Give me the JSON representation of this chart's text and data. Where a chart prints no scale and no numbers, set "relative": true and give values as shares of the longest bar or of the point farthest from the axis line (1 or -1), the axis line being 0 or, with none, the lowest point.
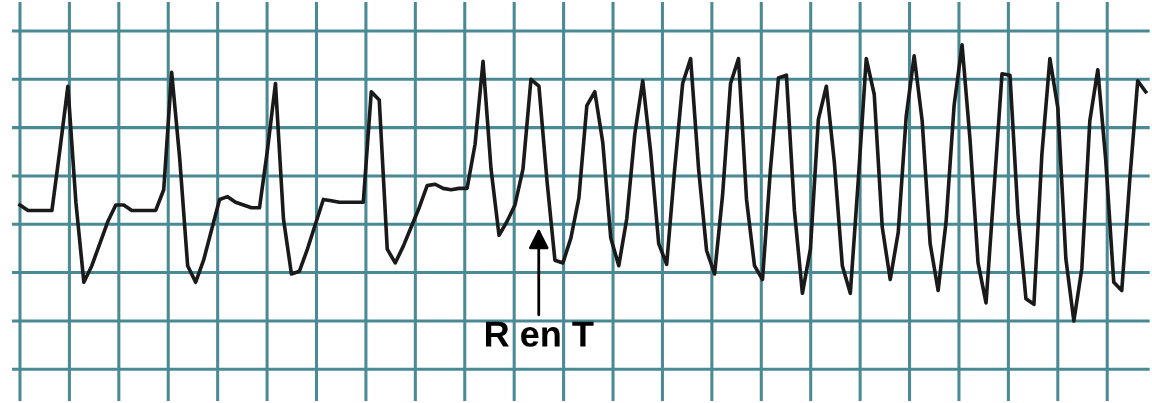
{
  "chart_data": {
    "type": "line",
    "relative": true,
    "grid": true,
    "legend": false,
    "marker": "none",
    "line_style": "solid",
    "categories": [
      null,
      null,
      null,
      null,
      null,
      null,
      null,
      null,
      null,
      null,
      null,
      null,
      null,
      null,
      null,
      null,
      null,
      null,
      null,
      null,
      null,
      null,
      null,
      null,
      null,
      null,
      null,
      null,
      null,
      null,
      null,
      null,
      null,
      null,
      null,
      null,
      null,
      null,
      null,
      null,
      null,
      null,
      null,
      null,
      null,
      null,
      null,
      null,
      null,
      null,
      null,
      null,
      null,
      null,
      null,
      null,
      null,
      null,
      null,
      null,
      null,
      null,
      null,
      null,
      null,
      null,
      null,
      null,
      null,
      null,
      null,
      null,
      null,
      null,
      null,
      null,
      null,
      null,
      null,
      null,
      null,
      null,
      null,
      null,
      null,
      null,
      null,
      null,
      null,
      null,
      null,
      null,
      null,
      null,
      null,
      null,
      null,
      null,
      null,
      null,
      null,
      null,
      null,
      null,
      null,
      null,
      null,
      null,
      null,
      null,
      null,
      null,
      null,
      null,
      null,
      null,
      null,
      null,
      null,
      null,
      null,
      null,
      null,
      null,
      null,
      null,
      null,
      null,
      null,
      null,
      null,
      null,
      null,
      null,
      null,
      null,
      null,
      null,
      null,
      null,
      null,
      null
    ],
    "series": [
      {
        "color": "#1a1a1a",
        "values": [
          0.42,
          0.4,
          0.4,
          0.4,
          0.4,
          0.62,
          0.85,
          0.43,
          0.14,
          0.2,
          0.28,
          0.36,
          0.42,
          0.42,
          0.4,
          0.4,
          0.4,
          0.4,
          0.475,
          0.9,
          0.59,
          0.2,
          0.14,
          0.22,
          0.33,
          0.44,
          0.45,
          0.43,
          0.42,
          0.41,
          0.41,
          0.62,
          0.86,
          0.37,
          0.17,
          0.18,
          0.26,
          0.35,
          0.44,
          0.435,
          0.43,
          0.43,
          0.43,
          0.43,
          0.83,
          0.8,
          0.26,
          0.21,
          0.27,
          0.34,
          0.41,
          0.49,
          0.495,
          0.48,
          0.475,
          0.48,
          0.48,
          0.64,
          0.94,
          0.55,
          0.31,
          0.36,
          0.42,
          0.55,
          0.875,
          0.85,
          0.51,
          0.22,
          0.21,
          0.3,
          0.445,
          0.78,
          0.83,
          0.645,
          0.3,
          0.2,
          0.37,
          0.675,
          0.87,
          0.61,
          0.28,
          0.205,
          0.55,
          0.86,
          0.95,
          0.55,
          0.255,
          0.17,
          0.455,
          0.86,
          0.95,
          0.44,
          0.2,
          0.15,
          0.55,
          0.88,
          0.89,
          0.4,
          0.1,
          0.26,
          0.73,
          0.85,
          0.575,
          0.2,
          0.1,
          0.51,
          0.95,
          0.82,
          0.34,
          0.15,
          0.32,
          0.74,
          0.96,
          0.725,
          0.28,
          0.11,
          0.36,
          0.78,
          1,
          0.655,
          0.21,
          0.065,
          0.475,
          0.895,
          0.89,
          0.385,
          0.08,
          0.06,
          0.605,
          0.95,
          0.77,
          0.225,
          0,
          0.19,
          0.725,
          0.91,
          0.58,
          0.14,
          0.11,
          0.51,
          0.87,
          0.83
        ]
      }
    ],
    "annotations": [
      "R en T"
    ]
  }
}
